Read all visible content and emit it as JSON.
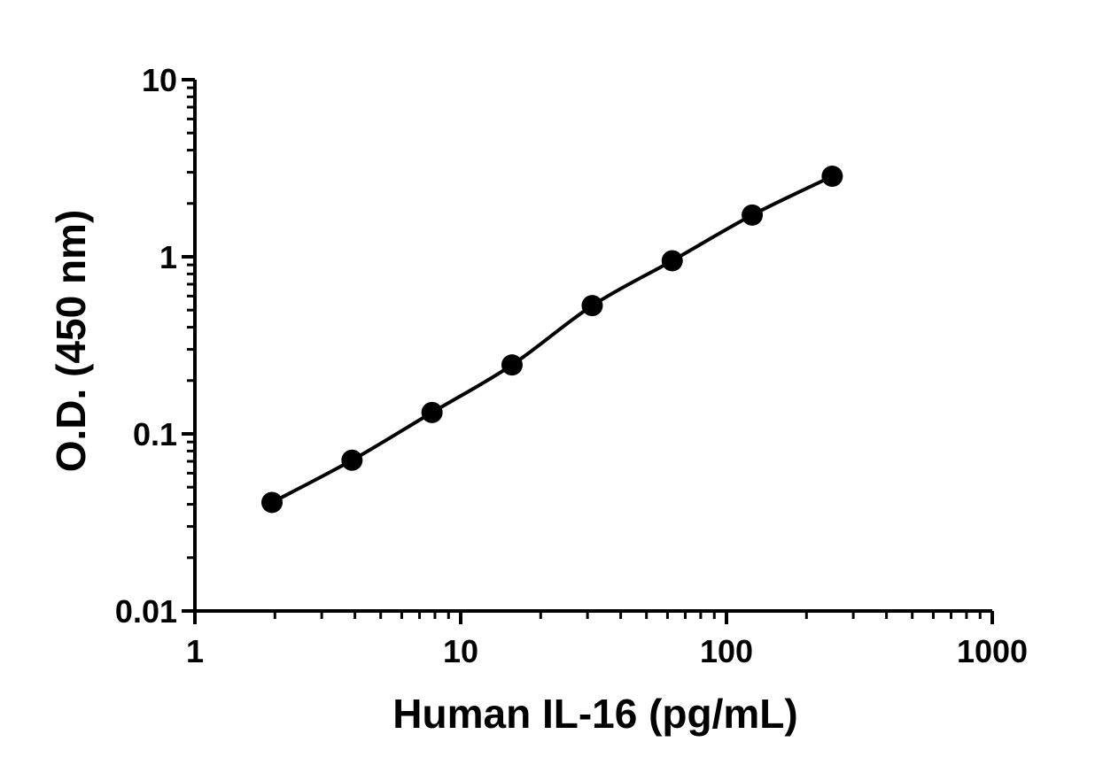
{
  "chart_data": {
    "type": "line",
    "x_scale": "log",
    "y_scale": "log",
    "xlabel": "Human IL-16 (pg/mL)",
    "ylabel": "O.D. (450 nm)",
    "xlim": [
      1,
      1000
    ],
    "ylim": [
      0.01,
      10
    ],
    "x_ticks": [
      1,
      10,
      100,
      1000
    ],
    "x_tick_labels": [
      "1",
      "10",
      "100",
      "1000"
    ],
    "y_ticks": [
      0.01,
      0.1,
      1,
      10
    ],
    "y_tick_labels": [
      "0.01",
      "0.1",
      "1",
      "10"
    ],
    "grid": false,
    "legend": "none",
    "colors": {
      "series": "#000000"
    },
    "series": [
      {
        "x": [
          1.95,
          3.9,
          7.8,
          15.6,
          31.25,
          62.5,
          125,
          250
        ],
        "y": [
          0.041,
          0.071,
          0.132,
          0.245,
          0.53,
          0.95,
          1.72,
          2.85
        ]
      }
    ]
  }
}
